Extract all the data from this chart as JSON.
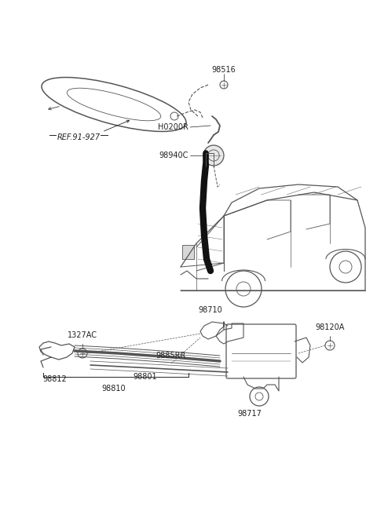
{
  "bg_color": "#ffffff",
  "lc": "#555555",
  "tc": "#222222",
  "fs": 7.0,
  "labels": {
    "ref_91_927": "REF.91-927",
    "98516": "98516",
    "H0200R": "H0200R",
    "98940C": "98940C",
    "98710": "98710",
    "1327AC": "1327AC",
    "98812": "98812",
    "98801": "98801",
    "98810": "98810",
    "9885RR": "9885RR",
    "98717": "98717",
    "98120A": "98120A"
  }
}
